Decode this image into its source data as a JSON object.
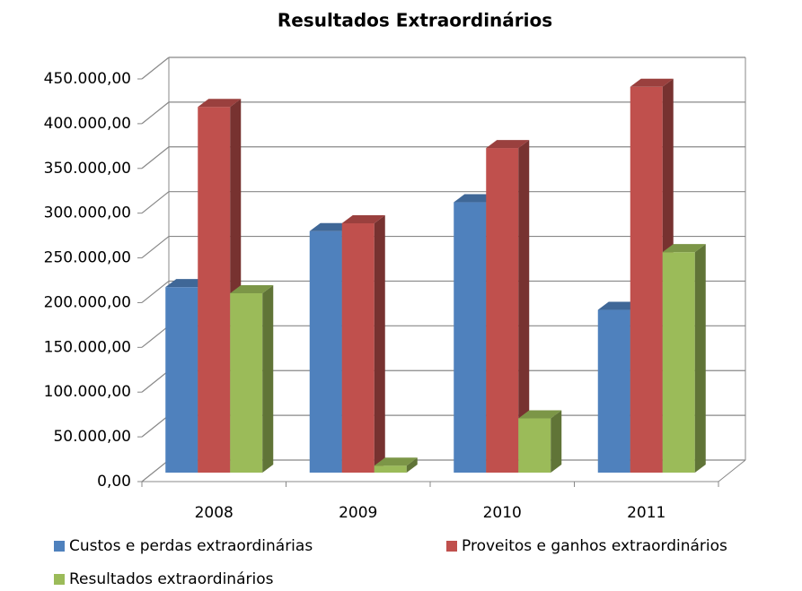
{
  "chart_data": {
    "type": "bar3d",
    "title": "Resultados Extraordinários",
    "categories": [
      "2008",
      "2009",
      "2010",
      "2011"
    ],
    "series": [
      {
        "name": "Custos e perdas extraordinárias",
        "color": "#4f81bd",
        "values": [
          212000,
          276000,
          309000,
          186000
        ]
      },
      {
        "name": "Proveitos e ganhos extraordinários",
        "color": "#c0504d",
        "values": [
          418000,
          285000,
          371000,
          441000
        ]
      },
      {
        "name": "Resultados extraordinários",
        "color": "#9bbb59",
        "values": [
          205000,
          8000,
          62000,
          252000
        ]
      }
    ],
    "ylim": [
      0,
      450000
    ],
    "yticks": [
      {
        "value": 0,
        "label": "0,00"
      },
      {
        "value": 50000,
        "label": "50.000,00"
      },
      {
        "value": 100000,
        "label": "100.000,00"
      },
      {
        "value": 150000,
        "label": "150.000,00"
      },
      {
        "value": 200000,
        "label": "200.000,00"
      },
      {
        "value": 250000,
        "label": "250.000,00"
      },
      {
        "value": 300000,
        "label": "300.000,00"
      },
      {
        "value": 350000,
        "label": "350.000,00"
      },
      {
        "value": 400000,
        "label": "400.000,00"
      },
      {
        "value": 450000,
        "label": "450.000,00"
      }
    ],
    "grid": true,
    "legend": "bottom"
  }
}
